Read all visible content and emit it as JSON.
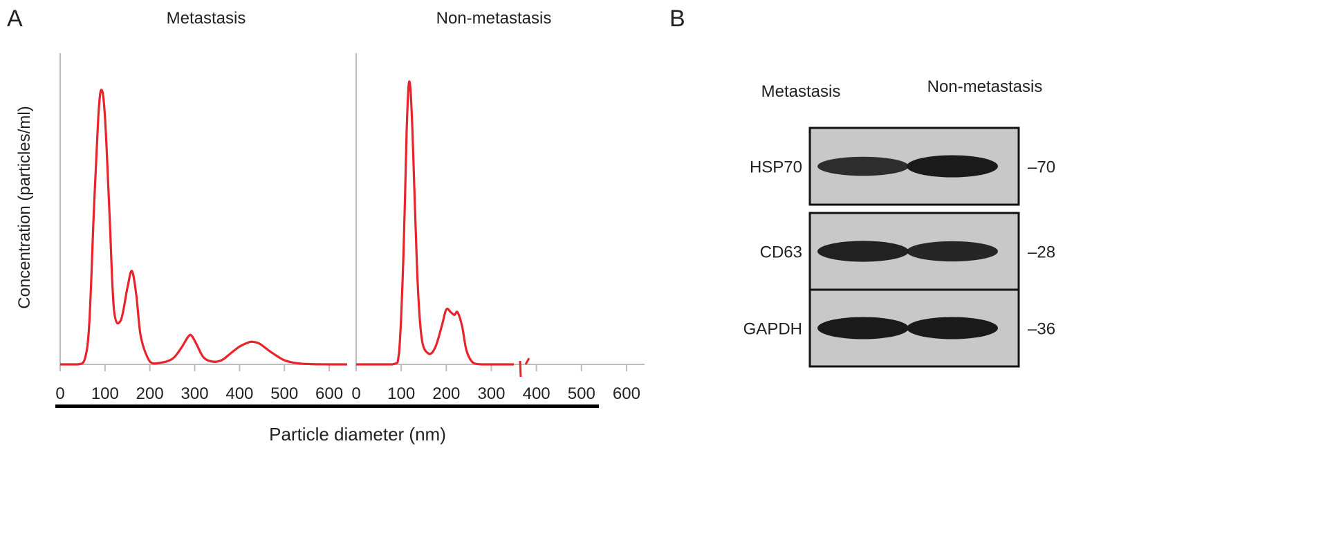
{
  "panel_a": {
    "letter": "A",
    "xlabel": "Particle diameter (nm)",
    "ylabel": "Concentration (particles/ml)"
  },
  "panel_b": {
    "letter": "B",
    "column_labels": [
      "Metastasis",
      "Non-metastasis"
    ],
    "blots": [
      {
        "protein": "HSP70",
        "marker": "–70",
        "band_intensity": [
          0.75,
          1.0
        ]
      },
      {
        "protein": "CD63",
        "marker": "–28",
        "band_intensity": [
          0.9,
          0.85
        ]
      },
      {
        "protein": "GAPDH",
        "marker": "–36",
        "band_intensity": [
          1.0,
          1.0
        ]
      }
    ]
  },
  "chart_data": [
    {
      "type": "line",
      "title": "Metastasis",
      "xlabel": "Particle diameter (nm)",
      "ylabel": "Concentration (particles/ml)",
      "xlim": [
        0,
        640
      ],
      "ylim": [
        0,
        1.05
      ],
      "xticks": [
        0,
        100,
        200,
        300,
        400,
        500,
        600
      ],
      "color": "#e8232a",
      "x": [
        0,
        40,
        55,
        65,
        75,
        85,
        92,
        100,
        110,
        120,
        135,
        150,
        160,
        170,
        180,
        200,
        220,
        250,
        270,
        285,
        293,
        305,
        320,
        340,
        360,
        380,
        400,
        420,
        430,
        445,
        470,
        500,
        530,
        560,
        600,
        640
      ],
      "y": [
        0,
        0,
        0.02,
        0.15,
        0.55,
        0.9,
        1.0,
        0.9,
        0.55,
        0.2,
        0.16,
        0.28,
        0.34,
        0.25,
        0.1,
        0.01,
        0.005,
        0.02,
        0.06,
        0.1,
        0.105,
        0.07,
        0.025,
        0.01,
        0.015,
        0.04,
        0.065,
        0.08,
        0.082,
        0.075,
        0.045,
        0.015,
        0.004,
        0.001,
        0,
        0
      ]
    },
    {
      "type": "line",
      "title": "Non-metastasis",
      "xlim": [
        0,
        640
      ],
      "ylim": [
        0,
        1.05
      ],
      "xticks": [
        0,
        100,
        200,
        300,
        400,
        500,
        600
      ],
      "color": "#e8232a",
      "x": [
        0,
        80,
        95,
        105,
        112,
        118,
        125,
        135,
        145,
        160,
        175,
        190,
        200,
        210,
        218,
        225,
        235,
        245,
        260,
        280,
        300,
        330,
        350
      ],
      "y": [
        0,
        0,
        0.04,
        0.4,
        0.85,
        1.03,
        0.85,
        0.35,
        0.1,
        0.04,
        0.06,
        0.14,
        0.2,
        0.19,
        0.18,
        0.19,
        0.14,
        0.05,
        0.005,
        0,
        0,
        0,
        0
      ]
    }
  ]
}
